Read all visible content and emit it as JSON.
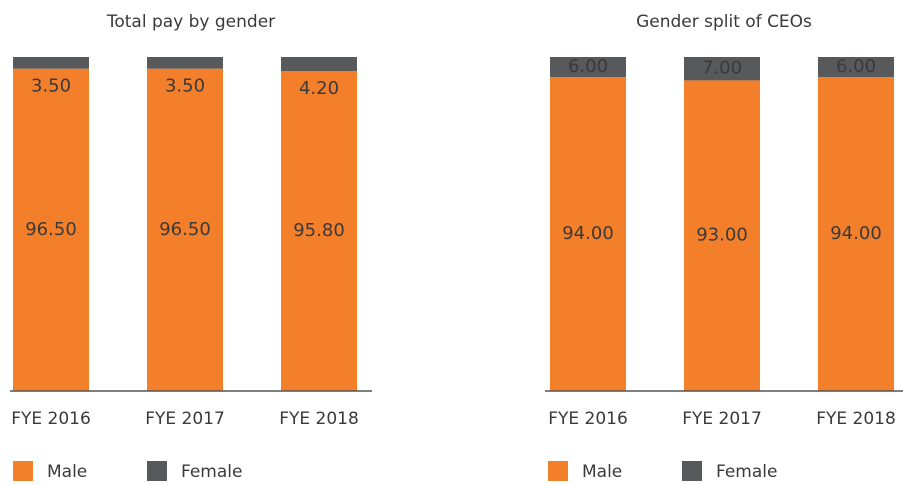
{
  "chart_data": [
    {
      "type": "bar",
      "stacked": true,
      "title": "Total pay by gender",
      "categories": [
        "FYE 2016",
        "FYE 2017",
        "FYE 2018"
      ],
      "series": [
        {
          "name": "Male",
          "color": "#f47f2a",
          "values": [
            96.5,
            96.5,
            95.8
          ],
          "value_labels": [
            "96.50",
            "96.50",
            "95.80"
          ]
        },
        {
          "name": "Female",
          "color": "#58595b",
          "values": [
            3.5,
            3.5,
            4.2
          ],
          "value_labels": [
            "3.50",
            "3.50",
            "4.20"
          ]
        }
      ],
      "ylim": [
        0,
        100
      ]
    },
    {
      "type": "bar",
      "stacked": true,
      "title": "Gender split of CEOs",
      "categories": [
        "FYE 2016",
        "FYE 2017",
        "FYE 2018"
      ],
      "series": [
        {
          "name": "Male",
          "color": "#f47f2a",
          "values": [
            94,
            93,
            94
          ],
          "value_labels": [
            "94.00",
            "93.00",
            "94.00"
          ]
        },
        {
          "name": "Female",
          "color": "#58595b",
          "values": [
            6,
            7,
            6
          ],
          "value_labels": [
            "6.00",
            "7.00",
            "6.00"
          ]
        }
      ],
      "ylim": [
        0,
        100
      ]
    }
  ]
}
